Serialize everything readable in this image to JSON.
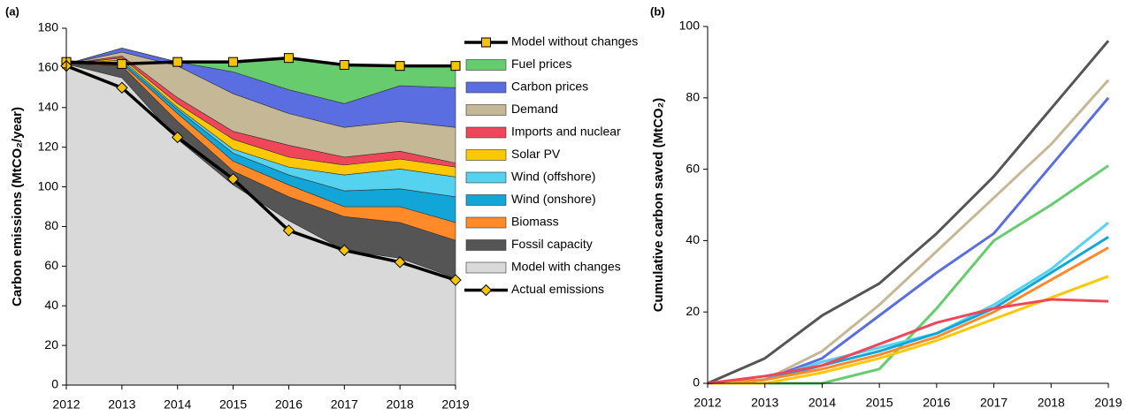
{
  "chart_data": [
    {
      "type": "area",
      "panel_label": "(a)",
      "ylabel": "Carbon emissions (MtCO₂/year)",
      "x": [
        2012,
        2013,
        2014,
        2015,
        2016,
        2017,
        2018,
        2019
      ],
      "xlim": [
        2012,
        2019
      ],
      "xticks": [
        2012,
        2013,
        2014,
        2015,
        2016,
        2017,
        2018,
        2019
      ],
      "ylim": [
        0,
        180
      ],
      "yticks": [
        0,
        20,
        40,
        60,
        80,
        100,
        120,
        140,
        160,
        180
      ],
      "series": [
        {
          "name": "Model without changes",
          "kind": "line",
          "marker": "square",
          "color": "#f5c400",
          "values": [
            163,
            162,
            163,
            163,
            165,
            161.5,
            161,
            161
          ]
        },
        {
          "name": "Fuel prices",
          "kind": "area",
          "color": "#66cc6e",
          "values": [
            0,
            0,
            0,
            5,
            16,
            19.5,
            10,
            11
          ]
        },
        {
          "name": "Carbon prices",
          "kind": "area",
          "color": "#5b6ee1",
          "values": [
            0,
            2,
            2,
            11,
            12,
            12,
            18,
            20
          ]
        },
        {
          "name": "Demand",
          "kind": "area",
          "color": "#c4b896",
          "values": [
            0,
            2,
            16,
            19,
            16,
            15,
            15,
            18
          ]
        },
        {
          "name": "Imports and nuclear",
          "kind": "area",
          "color": "#f0465a",
          "values": [
            0,
            1,
            3,
            4,
            6,
            4,
            4,
            2
          ]
        },
        {
          "name": "Solar PV",
          "kind": "area",
          "color": "#ffc800",
          "values": [
            0,
            1,
            2,
            5,
            5,
            5,
            5,
            5
          ]
        },
        {
          "name": "Wind (offshore)",
          "kind": "area",
          "color": "#55d2f0",
          "values": [
            0,
            1,
            1,
            2,
            4,
            8,
            10,
            10
          ]
        },
        {
          "name": "Wind (onshore)",
          "kind": "area",
          "color": "#12a6d8",
          "values": [
            0,
            1,
            2,
            4,
            5,
            8,
            9,
            13
          ]
        },
        {
          "name": "Biomass",
          "kind": "area",
          "color": "#ff8a2a",
          "values": [
            0,
            1,
            4,
            5,
            6,
            5,
            8,
            9
          ]
        },
        {
          "name": "Fossil capacity",
          "kind": "area",
          "color": "#555555",
          "values": [
            0,
            6,
            9,
            7,
            12,
            17,
            18,
            19
          ]
        },
        {
          "name": "Model with changes",
          "kind": "area",
          "color": "#d9d9d9",
          "values": [
            162,
            155,
            124,
            101,
            83,
            68,
            64,
            54
          ]
        },
        {
          "name": "Actual emissions",
          "kind": "line",
          "marker": "diamond",
          "color": "#f5c400",
          "values": [
            161,
            150,
            125,
            104,
            78,
            68,
            62,
            53
          ]
        }
      ]
    },
    {
      "type": "line",
      "panel_label": "(b)",
      "ylabel": "Cumulative carbon saved (MtCO₂)",
      "x": [
        2012,
        2013,
        2014,
        2015,
        2016,
        2017,
        2018,
        2019
      ],
      "xlim": [
        2012,
        2019
      ],
      "xticks": [
        2012,
        2013,
        2014,
        2015,
        2016,
        2017,
        2018,
        2019
      ],
      "ylim": [
        0,
        100
      ],
      "yticks": [
        0,
        20,
        40,
        60,
        80,
        100
      ],
      "series": [
        {
          "color": "#555555",
          "values": [
            0,
            7,
            19,
            28,
            42,
            58,
            77,
            96
          ]
        },
        {
          "color": "#c4b896",
          "values": [
            0,
            1,
            9,
            22,
            37,
            52,
            67,
            85
          ]
        },
        {
          "color": "#5b6ee1",
          "values": [
            0,
            1,
            7,
            19,
            31,
            42,
            61,
            80
          ]
        },
        {
          "color": "#66cc6e",
          "values": [
            0,
            0,
            0,
            4,
            21,
            40,
            50,
            61
          ]
        },
        {
          "color": "#55d2f0",
          "values": [
            0,
            1,
            6,
            10,
            14,
            22,
            32,
            45
          ]
        },
        {
          "color": "#12a6d8",
          "values": [
            0,
            1,
            5,
            9,
            14,
            21,
            31,
            41
          ]
        },
        {
          "color": "#ff8a2a",
          "values": [
            0,
            1,
            4,
            8,
            13,
            20,
            29,
            38
          ]
        },
        {
          "color": "#ffc800",
          "values": [
            0,
            0,
            3,
            7,
            12,
            18,
            24,
            30
          ]
        },
        {
          "color": "#f0465a",
          "values": [
            0,
            2,
            5,
            11,
            17,
            21,
            23.5,
            23
          ]
        }
      ]
    }
  ]
}
